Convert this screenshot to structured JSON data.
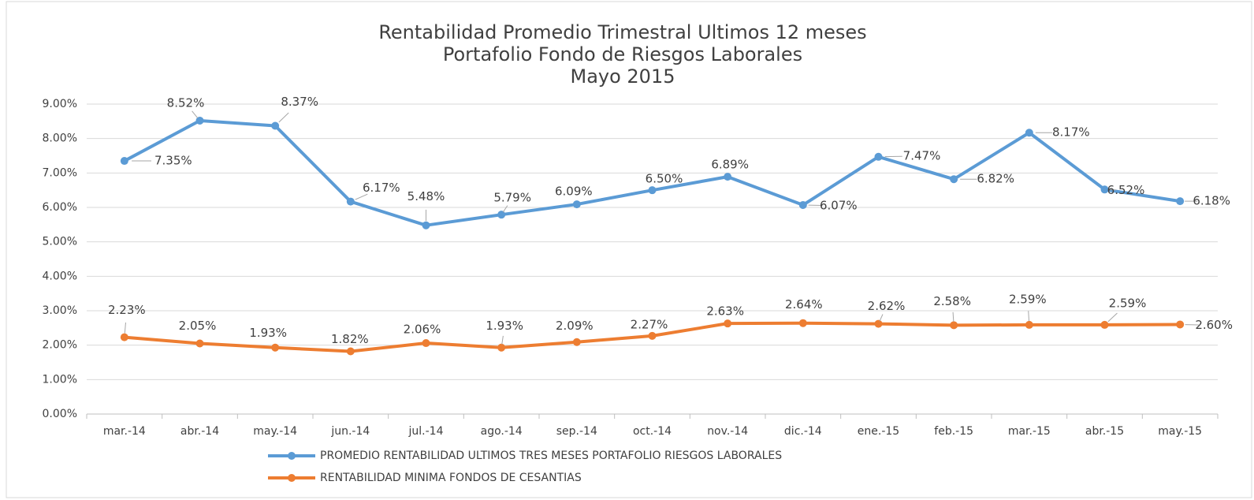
{
  "chart_data": {
    "type": "line",
    "title": [
      "Rentabilidad Promedio Trimestral Ultimos 12 meses",
      "Portafolio Fondo de Riesgos Laborales",
      "Mayo 2015"
    ],
    "categories": [
      "mar.-14",
      "abr.-14",
      "may.-14",
      "jun.-14",
      "jul.-14",
      "ago.-14",
      "sep.-14",
      "oct.-14",
      "nov.-14",
      "dic.-14",
      "ene.-15",
      "feb.-15",
      "mar.-15",
      "abr.-15",
      "may.-15"
    ],
    "series": [
      {
        "name": "PROMEDIO RENTABILIDAD ULTIMOS TRES MESES PORTAFOLIO RIESGOS LABORALES",
        "color": "#5b9bd5",
        "values": [
          7.35,
          8.52,
          8.37,
          6.17,
          5.48,
          5.79,
          6.09,
          6.5,
          6.89,
          6.07,
          7.47,
          6.82,
          8.17,
          6.52,
          6.18
        ],
        "value_labels": [
          "7.35%",
          "8.52%",
          "8.37%",
          "6.17%",
          "5.48%",
          "5.79%",
          "6.09%",
          "6.50%",
          "6.89%",
          "6.07%",
          "7.47%",
          "6.82%",
          "8.17%",
          "6.52%",
          "6.18%"
        ]
      },
      {
        "name": "RENTABILIDAD MINIMA FONDOS DE CESANTIAS",
        "color": "#ed7d31",
        "values": [
          2.23,
          2.05,
          1.93,
          1.82,
          2.06,
          1.93,
          2.09,
          2.27,
          2.63,
          2.64,
          2.62,
          2.58,
          2.59,
          2.59,
          2.6
        ],
        "value_labels": [
          "2.23%",
          "2.05%",
          "1.93%",
          "1.82%",
          "2.06%",
          "1.93%",
          "2.09%",
          "2.27%",
          "2.63%",
          "2.64%",
          "2.62%",
          "2.58%",
          "2.59%",
          "2.59%",
          "2.60%"
        ]
      }
    ],
    "ylim": [
      0,
      9
    ],
    "yticks": [
      {
        "value": 0,
        "label": "0.00%"
      },
      {
        "value": 1,
        "label": "1.00%"
      },
      {
        "value": 2,
        "label": "2.00%"
      },
      {
        "value": 3,
        "label": "3.00%"
      },
      {
        "value": 4,
        "label": "4.00%"
      },
      {
        "value": 5,
        "label": "5.00%"
      },
      {
        "value": 6,
        "label": "6.00%"
      },
      {
        "value": 7,
        "label": "7.00%"
      },
      {
        "value": 8,
        "label": "8.00%"
      },
      {
        "value": 9,
        "label": "9.00%"
      }
    ],
    "grid": true,
    "legend": "bottom"
  }
}
